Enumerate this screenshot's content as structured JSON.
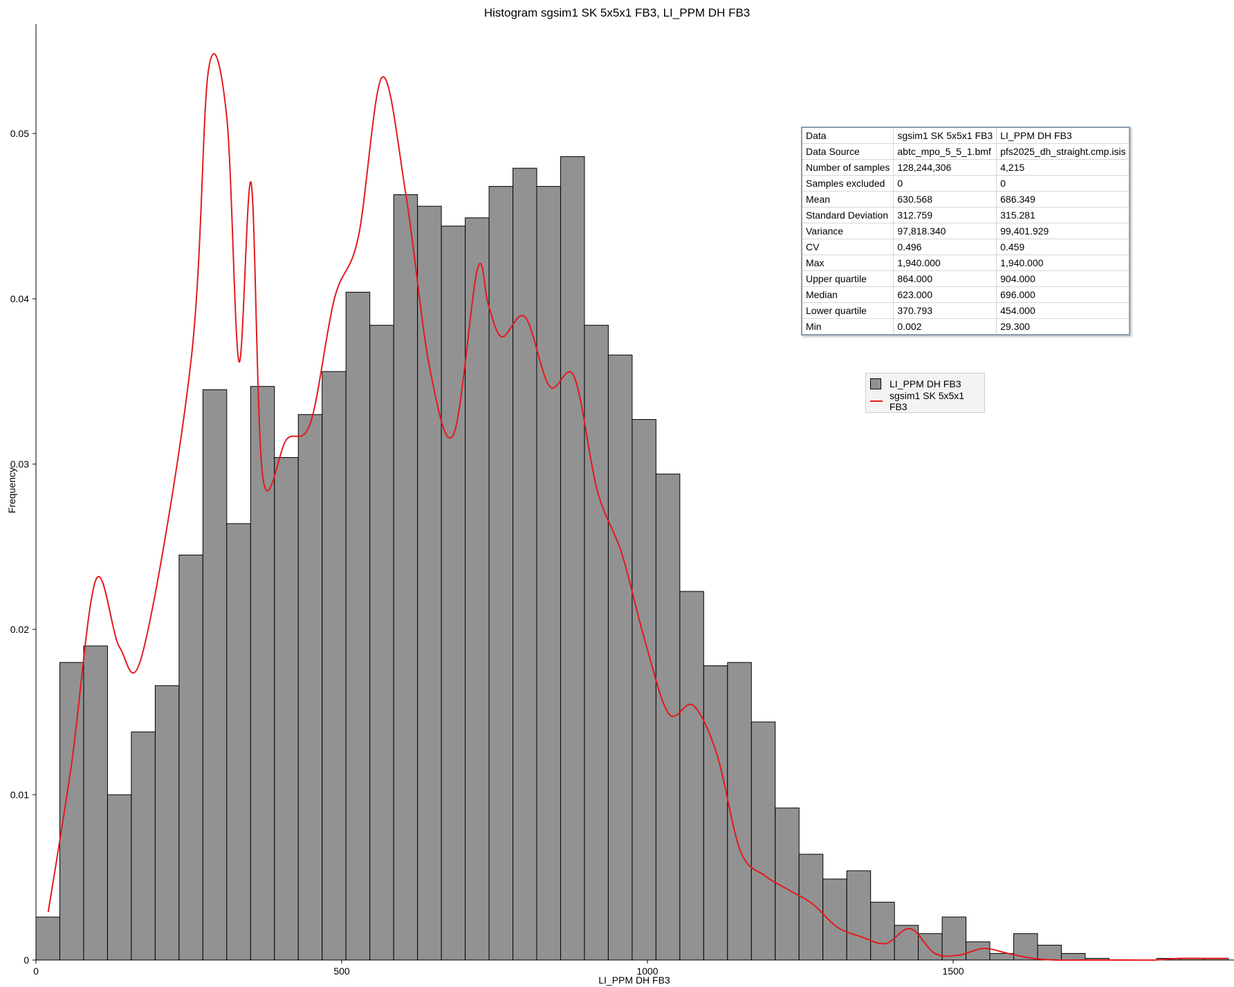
{
  "chart_data": {
    "type": "bar",
    "title": "Histogram sgsim1 SK 5x5x1 FB3, LI_PPM DH FB3",
    "xlabel": "LI_PPM DH FB3",
    "ylabel": "Frequency",
    "xlim": [
      0,
      1950
    ],
    "ylim": [
      0,
      0.0565
    ],
    "x_ticks": [
      0,
      500,
      1000,
      1500
    ],
    "y_ticks": [
      0,
      0.01,
      0.02,
      0.03,
      0.04,
      0.05
    ],
    "x_tick_labels": [
      "0",
      "500",
      "1000",
      "1500"
    ],
    "y_tick_labels": [
      "0",
      "0.01",
      "0.02",
      "0.03",
      "0.04",
      "0.05"
    ],
    "bin_width": 39,
    "grid": false,
    "legend_position": "right",
    "series": [
      {
        "name": "LI_PPM DH FB3",
        "type": "bar",
        "color": "#929292",
        "bin_edges": [
          0,
          39,
          78,
          117,
          156,
          195,
          234,
          273,
          312,
          351,
          390,
          429,
          468,
          507,
          546,
          585,
          624,
          663,
          702,
          741,
          780,
          819,
          858,
          897,
          936,
          975,
          1014,
          1053,
          1092,
          1131,
          1170,
          1209,
          1248,
          1287,
          1326,
          1365,
          1404,
          1443,
          1482,
          1521,
          1560,
          1599,
          1638,
          1677,
          1716,
          1755,
          1794,
          1833,
          1872,
          1911,
          1950
        ],
        "values": [
          0.0026,
          0.018,
          0.019,
          0.01,
          0.0138,
          0.0166,
          0.0245,
          0.0345,
          0.0264,
          0.0347,
          0.0304,
          0.033,
          0.0356,
          0.0404,
          0.0384,
          0.0463,
          0.0456,
          0.0444,
          0.0449,
          0.0468,
          0.0479,
          0.0468,
          0.0486,
          0.0384,
          0.0366,
          0.0327,
          0.0294,
          0.0223,
          0.0178,
          0.018,
          0.0144,
          0.0092,
          0.0064,
          0.0049,
          0.0054,
          0.0035,
          0.0021,
          0.0016,
          0.0026,
          0.0011,
          0.0004,
          0.0016,
          0.0009,
          0.0004,
          0.0001,
          0.0,
          0.0,
          0.0001,
          0.0001,
          0.0001
        ]
      },
      {
        "name": "sgsim1 SK 5x5x1 FB3",
        "type": "line",
        "color": "#e31a1c",
        "x": [
          20,
          58,
          98,
          137,
          176,
          254,
          282,
          312,
          332,
          352,
          371,
          410,
          449,
          488,
          527,
          566,
          605,
          644,
          683,
          722,
          740,
          762,
          800,
          840,
          880,
          918,
          958,
          996,
          1035,
          1075,
          1114,
          1152,
          1192,
          1233,
          1270,
          1310,
          1350,
          1390,
          1430,
          1470,
          1510,
          1550,
          1590,
          1630,
          1670,
          1710,
          1750,
          1790,
          1830,
          1870,
          1910,
          1950
        ],
        "values": [
          0.0029,
          0.0118,
          0.023,
          0.0189,
          0.0188,
          0.0364,
          0.0538,
          0.051,
          0.0362,
          0.047,
          0.0292,
          0.0315,
          0.0325,
          0.04,
          0.0437,
          0.0534,
          0.0463,
          0.0358,
          0.0318,
          0.0418,
          0.0396,
          0.0377,
          0.0389,
          0.0347,
          0.0353,
          0.0284,
          0.0246,
          0.0193,
          0.0149,
          0.0154,
          0.0124,
          0.0066,
          0.0051,
          0.0042,
          0.0034,
          0.002,
          0.0014,
          0.001,
          0.0019,
          0.0004,
          0.0003,
          0.0007,
          0.0004,
          0.0001,
          0.0,
          0.0,
          0.0,
          0.0,
          0.0,
          0.0001,
          0.0001,
          0.0001
        ]
      }
    ]
  },
  "stats_table": {
    "rows": [
      [
        "Data",
        "sgsim1 SK 5x5x1 FB3",
        "LI_PPM DH FB3"
      ],
      [
        "Data Source",
        "abtc_mpo_5_5_1.bmf",
        "pfs2025_dh_straight.cmp.isis"
      ],
      [
        "Number of samples",
        "128,244,306",
        "4,215"
      ],
      [
        "Samples excluded",
        "0",
        "0"
      ],
      [
        "Mean",
        "630.568",
        "686.349"
      ],
      [
        "Standard Deviation",
        "312.759",
        "315.281"
      ],
      [
        "Variance",
        "97,818.340",
        "99,401.929"
      ],
      [
        "CV",
        "0.496",
        "0.459"
      ],
      [
        "Max",
        "1,940.000",
        "1,940.000"
      ],
      [
        "Upper quartile",
        "864.000",
        "904.000"
      ],
      [
        "Median",
        "623.000",
        "696.000"
      ],
      [
        "Lower quartile",
        "370.793",
        "454.000"
      ],
      [
        "Min",
        "0.002",
        "29.300"
      ]
    ]
  },
  "legend": {
    "items": [
      {
        "label": "LI_PPM DH FB3",
        "kind": "box"
      },
      {
        "label": "sgsim1 SK 5x5x1 FB3",
        "kind": "line"
      }
    ]
  }
}
